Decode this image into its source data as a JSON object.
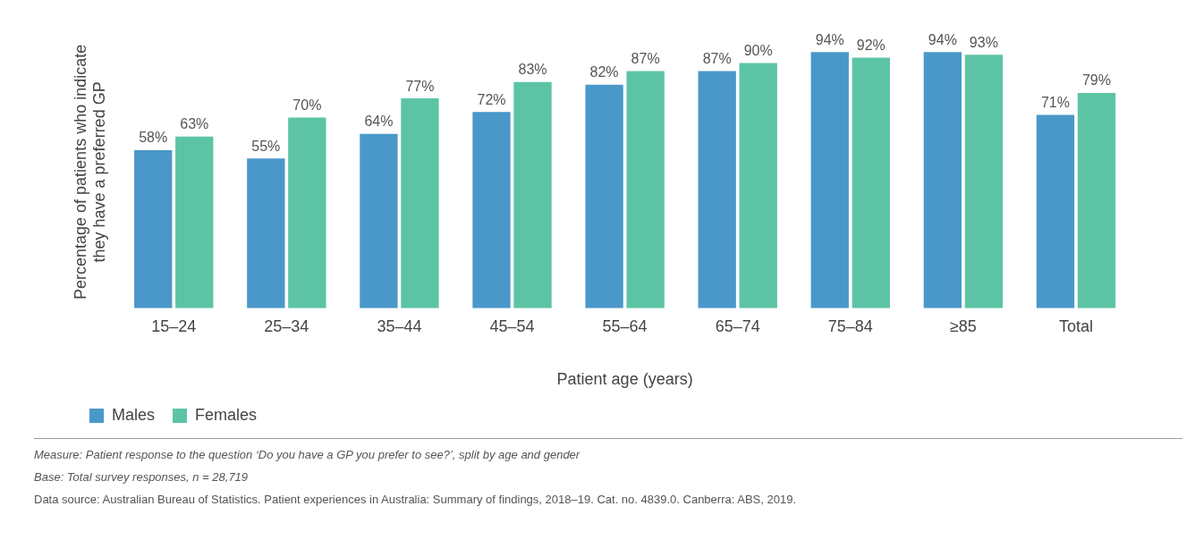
{
  "chart_data": {
    "type": "bar",
    "xlabel": "Patient age (years)",
    "ylabel": "Percentage of patients who indicate they have a preferred GP",
    "categories": [
      "15–24",
      "25–34",
      "35–44",
      "45–54",
      "55–64",
      "65–74",
      "75–84",
      "≥85",
      "Total"
    ],
    "series": [
      {
        "name": "Males",
        "color": "#4a98c9",
        "values": [
          58,
          55,
          64,
          72,
          82,
          87,
          94,
          94,
          71
        ],
        "value_labels": [
          "58%",
          "55%",
          "64%",
          "72%",
          "82%",
          "87%",
          "94%",
          "94%",
          "71%"
        ]
      },
      {
        "name": "Females",
        "color": "#5cc4a5",
        "values": [
          63,
          70,
          77,
          83,
          87,
          90,
          92,
          93,
          79
        ],
        "value_labels": [
          "63%",
          "70%",
          "77%",
          "83%",
          "87%",
          "90%",
          "92%",
          "93%",
          "79%"
        ]
      }
    ],
    "legend": "bottom left",
    "grid": false,
    "annotations": [
      "Measure: Patient response to the question ‘Do you have a GP you prefer to see?’, split by age and gender",
      "Base: Total survey responses, n = 28,719",
      "Data source: Australian Bureau of Statistics. Patient experiences in Australia: Summary of findings, 2018–19. Cat. no. 4839.0. Canberra: ABS, 2019."
    ]
  }
}
